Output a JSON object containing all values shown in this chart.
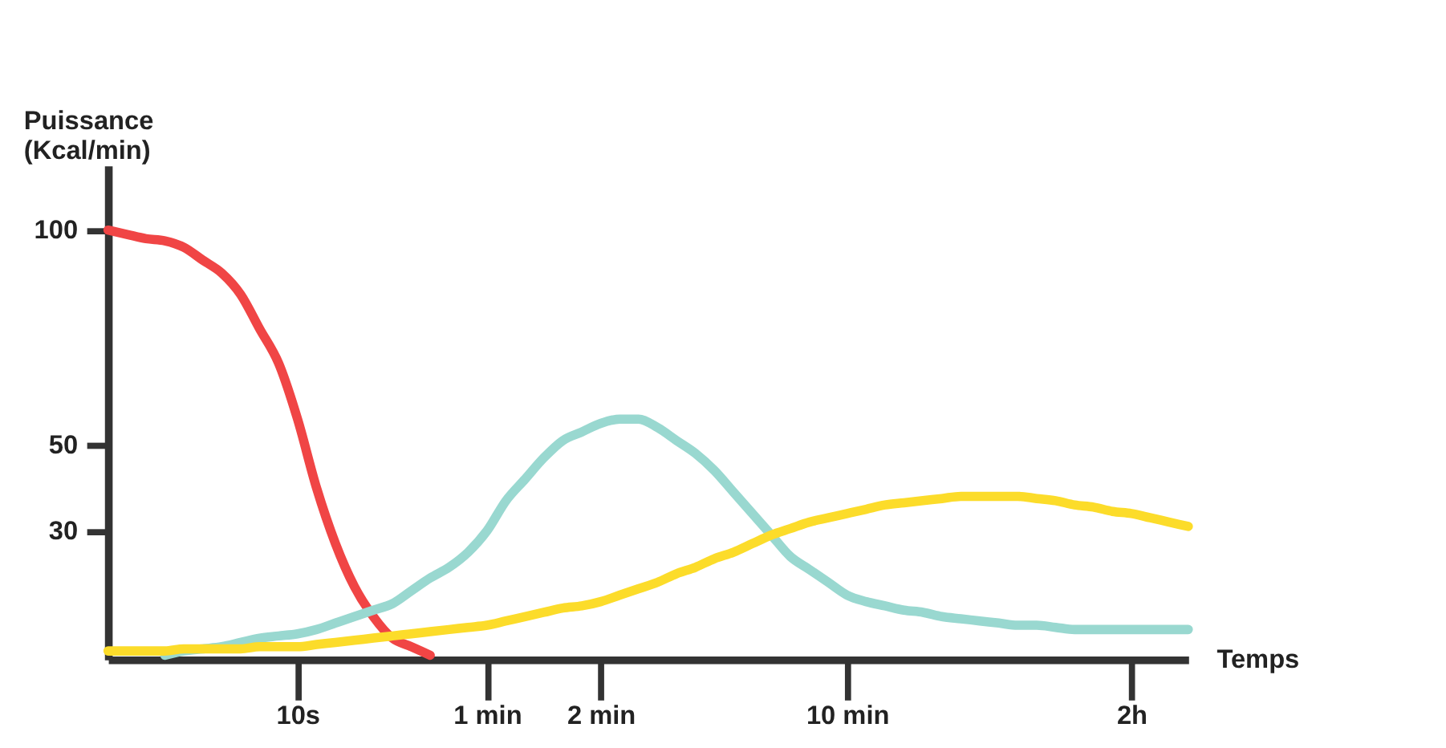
{
  "chart_data": {
    "type": "line",
    "xlabel": "Temps",
    "ylabel": "Puissance (Kcal/min)",
    "categories": [
      null,
      null,
      null,
      null,
      null,
      null,
      null,
      null,
      null,
      null,
      "10s",
      null,
      null,
      null,
      null,
      null,
      null,
      null,
      null,
      null,
      "1 min",
      null,
      null,
      null,
      null,
      null,
      "2 min",
      null,
      null,
      null,
      null,
      null,
      null,
      null,
      null,
      null,
      null,
      null,
      null,
      "10 min",
      null,
      null,
      null,
      null,
      null,
      null,
      null,
      null,
      null,
      null,
      null,
      null,
      null,
      null,
      "2h",
      null,
      null,
      null
    ],
    "ylim": [
      0,
      115
    ],
    "yticks": [
      30,
      50,
      100
    ],
    "grid": false,
    "legend": false,
    "marker": "none",
    "line_style": "solid",
    "series": [
      {
        "color": "#f04545",
        "values": [
          100,
          99,
          98,
          97.5,
          96,
          93,
          90,
          85,
          77,
          69,
          56,
          40,
          27,
          17,
          10,
          5,
          3,
          1,
          null,
          null,
          null,
          null,
          null,
          null,
          null,
          null,
          null,
          null,
          null,
          null,
          null,
          null,
          null,
          null,
          null,
          null,
          null,
          null,
          null,
          null,
          null,
          null,
          null,
          null,
          null,
          null,
          null,
          null,
          null,
          null,
          null,
          null,
          null,
          null,
          null,
          null,
          null,
          null
        ]
      },
      {
        "color": "#99d8d0",
        "values": [
          null,
          null,
          null,
          1,
          2,
          2.5,
          3,
          4,
          5,
          5.5,
          6,
          7,
          8.5,
          10,
          11.5,
          13,
          16,
          19,
          21.5,
          25,
          30,
          37,
          42,
          47,
          51,
          53,
          55,
          56,
          56,
          54,
          51,
          48,
          44,
          39,
          34,
          29,
          24,
          21,
          18,
          15,
          13.5,
          12.5,
          11.5,
          11,
          10,
          9.5,
          9,
          8.5,
          8,
          8,
          7.5,
          7,
          7,
          7,
          7,
          7,
          7,
          7
        ]
      },
      {
        "color": "#fcdc2a",
        "values": [
          2,
          2,
          2,
          2,
          2.5,
          2.5,
          2.5,
          2.5,
          3,
          3,
          3,
          3.5,
          4,
          4.5,
          5,
          5.5,
          6,
          6.5,
          7,
          7.5,
          8,
          9,
          10,
          11,
          12,
          12.5,
          13.5,
          15,
          16.5,
          18,
          20,
          21.5,
          23.5,
          25,
          27,
          29,
          30.5,
          32,
          33,
          34,
          35,
          36,
          36.5,
          37,
          37.5,
          38,
          38,
          38,
          38,
          37.5,
          37,
          36,
          35.5,
          34.5,
          34,
          33,
          32,
          31
        ]
      }
    ]
  }
}
